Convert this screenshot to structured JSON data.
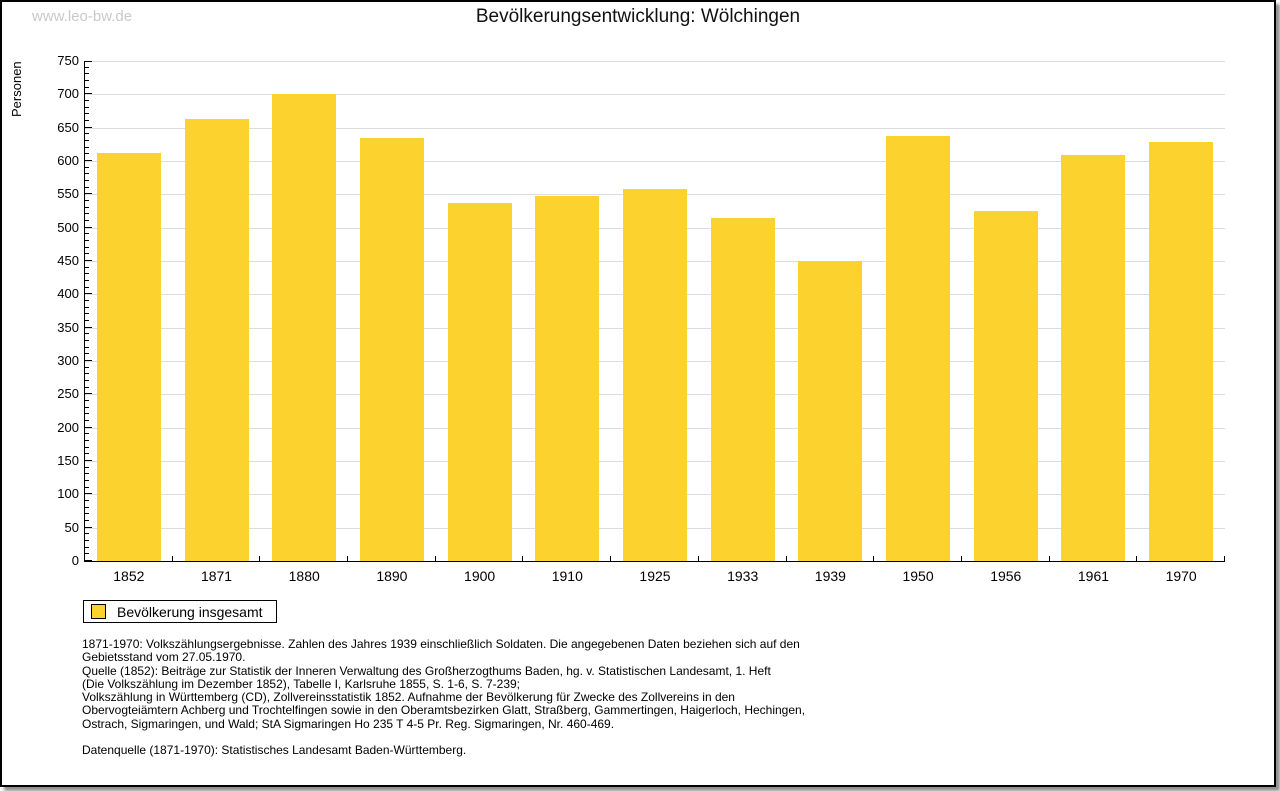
{
  "page": {
    "watermark": "www.leo-bw.de"
  },
  "chart_data": {
    "type": "bar",
    "title": "Bevölkerungsentwicklung: Wölchingen",
    "xlabel": "",
    "ylabel": "Personen",
    "categories": [
      "1852",
      "1871",
      "1880",
      "1890",
      "1900",
      "1910",
      "1925",
      "1933",
      "1939",
      "1950",
      "1956",
      "1961",
      "1970"
    ],
    "series": [
      {
        "name": "Bevölkerung insgesamt",
        "values": [
          612,
          663,
          700,
          635,
          537,
          548,
          558,
          514,
          450,
          637,
          525,
          609,
          628
        ]
      }
    ],
    "ylim": [
      0,
      750
    ],
    "ytick_step": 50,
    "ytick_minor_step": 10,
    "grid": "horizontal-major",
    "legend_position": "bottom-left",
    "bar_color": "#FCD32E"
  },
  "legend": {
    "label": "Bevölkerung insgesamt"
  },
  "footer": {
    "lines": [
      "1871-1970: Volkszählungsergebnisse. Zahlen des Jahres 1939 einschließlich Soldaten. Die angegebenen Daten beziehen sich auf den",
      "Gebietsstand vom 27.05.1970.",
      "Quelle (1852): Beiträge zur Statistik der Inneren Verwaltung des Großherzogthums Baden, hg. v. Statistischen Landesamt, 1. Heft",
      "(Die Volkszählung im Dezember 1852), Tabelle I, Karlsruhe 1855, S. 1-6, S. 7-239;",
      "Volkszählung in Württemberg (CD), Zollvereinsstatistik 1852. Aufnahme der Bevölkerung für Zwecke des Zollvereins in den",
      "Obervogteiämtern Achberg und Trochtelfingen sowie in den Oberamtsbezirken Glatt, Straßberg, Gammertingen, Haigerloch, Hechingen,",
      "Ostrach, Sigmaringen, und Wald; StA Sigmaringen Ho 235 T 4-5 Pr. Reg. Sigmaringen, Nr. 460-469.",
      "",
      "Datenquelle (1871-1970): Statistisches Landesamt Baden-Württemberg."
    ]
  },
  "colors": {
    "bar": "#FCD32E",
    "grid": "#DCDCDC",
    "axis": "#000000",
    "watermark": "#C9C9C9"
  }
}
